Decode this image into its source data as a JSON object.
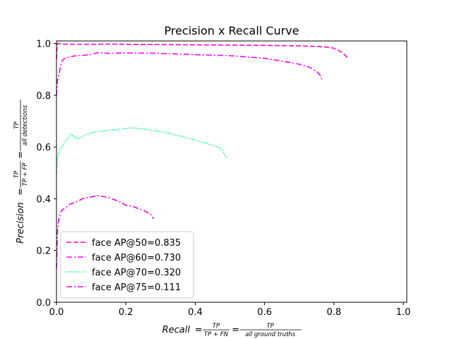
{
  "chart_data": {
    "type": "line",
    "title": "Precision x Recall Curve",
    "xlabel": {
      "lhs": "Recall",
      "frac1_num": "TP",
      "frac1_den": "TP + FN",
      "frac2_num": "TP",
      "frac2_den": "all ground truths"
    },
    "ylabel": {
      "lhs": "Precision",
      "frac1_num": "TP",
      "frac1_den": "TP + FP",
      "frac2_num": "TP",
      "frac2_den": "all detections"
    },
    "xlim": [
      0.0,
      1.01
    ],
    "ylim": [
      0.0,
      1.01
    ],
    "xticks": [
      0.0,
      0.2,
      0.4,
      0.6,
      0.8,
      1.0
    ],
    "xtick_labels": [
      "0.0",
      "0.2",
      "0.4",
      "0.6",
      "0.8",
      "1.0"
    ],
    "yticks": [
      0.0,
      0.2,
      0.4,
      0.6,
      0.8,
      1.0
    ],
    "ytick_labels": [
      "0.0",
      "0.2",
      "0.4",
      "0.6",
      "0.8",
      "1.0"
    ],
    "grid": false,
    "legend_position": "lower-left",
    "series": [
      {
        "name": "face AP@50=0.835",
        "color": "#ff00cc",
        "dash": "dashed",
        "x": [
          0.0,
          0.002,
          0.005,
          0.01,
          0.02,
          0.05,
          0.1,
          0.15,
          0.2,
          0.3,
          0.4,
          0.5,
          0.6,
          0.7,
          0.75,
          0.78,
          0.8,
          0.81,
          0.82,
          0.83,
          0.84
        ],
        "y": [
          0.94,
          1.0,
          1.0,
          1.0,
          0.998,
          0.997,
          0.997,
          0.998,
          0.997,
          0.996,
          0.995,
          0.994,
          0.993,
          0.991,
          0.989,
          0.986,
          0.982,
          0.975,
          0.968,
          0.958,
          0.945
        ]
      },
      {
        "name": "face AP@60=0.730",
        "color": "#ff00ff",
        "dash": "dashdot",
        "x": [
          0.0,
          0.003,
          0.005,
          0.01,
          0.015,
          0.02,
          0.03,
          0.05,
          0.08,
          0.1,
          0.12,
          0.15,
          0.2,
          0.3,
          0.4,
          0.5,
          0.6,
          0.65,
          0.7,
          0.73,
          0.75,
          0.76,
          0.765
        ],
        "y": [
          0.8,
          0.86,
          0.87,
          0.9,
          0.93,
          0.94,
          0.945,
          0.952,
          0.955,
          0.958,
          0.965,
          0.962,
          0.964,
          0.962,
          0.957,
          0.953,
          0.943,
          0.932,
          0.92,
          0.908,
          0.892,
          0.878,
          0.862
        ]
      },
      {
        "name": "face AP@70=0.320",
        "color": "#00ff80",
        "dash": "dotted",
        "x": [
          0.0,
          0.003,
          0.005,
          0.01,
          0.015,
          0.02,
          0.03,
          0.04,
          0.05,
          0.06,
          0.07,
          0.08,
          0.1,
          0.12,
          0.15,
          0.18,
          0.2,
          0.22,
          0.25,
          0.3,
          0.35,
          0.4,
          0.45,
          0.47,
          0.48,
          0.49
        ],
        "y": [
          0.5,
          0.56,
          0.57,
          0.59,
          0.6,
          0.61,
          0.63,
          0.65,
          0.64,
          0.633,
          0.636,
          0.645,
          0.655,
          0.66,
          0.665,
          0.668,
          0.672,
          0.674,
          0.67,
          0.66,
          0.645,
          0.627,
          0.607,
          0.597,
          0.583,
          0.557
        ]
      },
      {
        "name": "face AP@75=0.111",
        "color": "#ee00ee",
        "dash": "dashdot",
        "x": [
          0.0,
          0.003,
          0.005,
          0.01,
          0.015,
          0.02,
          0.03,
          0.04,
          0.05,
          0.06,
          0.08,
          0.1,
          0.11,
          0.12,
          0.15,
          0.18,
          0.2,
          0.22,
          0.25,
          0.27,
          0.28
        ],
        "y": [
          0.13,
          0.28,
          0.31,
          0.34,
          0.355,
          0.36,
          0.37,
          0.38,
          0.385,
          0.39,
          0.403,
          0.407,
          0.41,
          0.412,
          0.405,
          0.39,
          0.375,
          0.37,
          0.355,
          0.342,
          0.323
        ]
      }
    ]
  }
}
